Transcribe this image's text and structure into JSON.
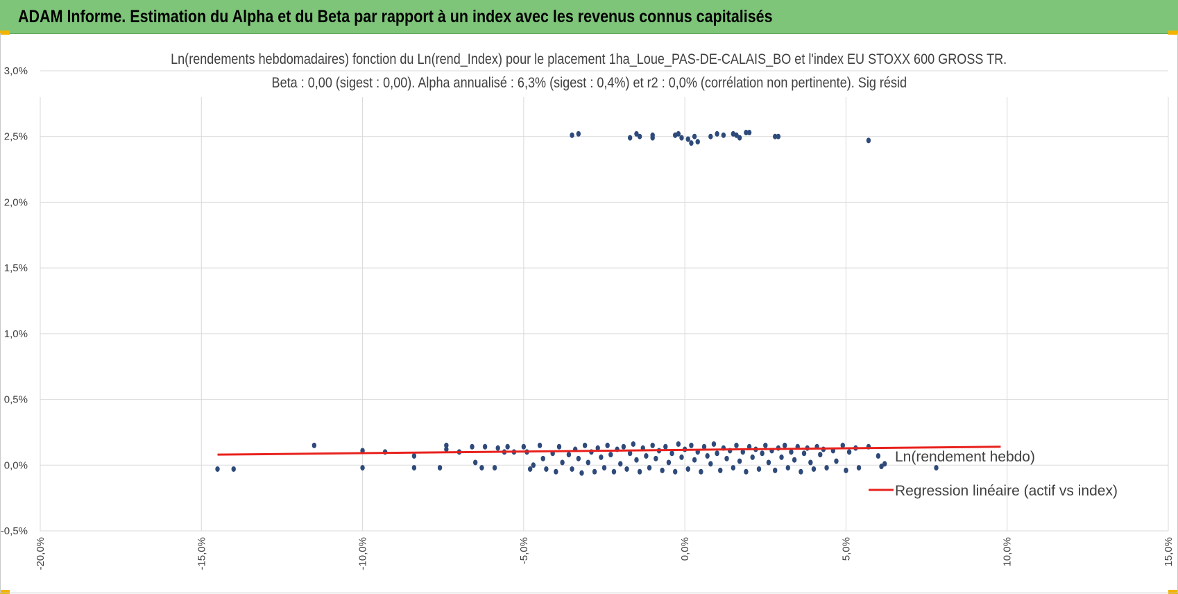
{
  "banner": {
    "title": "ADAM Informe. Estimation du Alpha et du Beta par rapport à un index avec les revenus connus capitalisés",
    "background_color": "#7ec57a",
    "corner_color": "#f2b400"
  },
  "chart_data": {
    "type": "scatter",
    "title": "Ln(rendements hebdomadaires) fonction du Ln(rend_Index) pour le placement 1ha_Loue_PAS-DE-CALAIS_BO et l'index EU STOXX 600 GROSS TR.",
    "subtitle": "Beta : 0,00 (sigest : 0,00). Alpha annualisé : 6,3% (sigest : 0,4%) et r2 : 0,0% (corrélation non pertinente). Sig résid",
    "xlabel": "",
    "ylabel": "",
    "xlim": [
      -20,
      15
    ],
    "ylim": [
      -0.5,
      3.0
    ],
    "x_ticks": [
      -20,
      -15,
      -10,
      -5,
      0,
      5,
      10,
      15
    ],
    "x_tick_labels": [
      "-20,0%",
      "-15,0%",
      "-10,0%",
      "-5,0%",
      "0,0%",
      "5,0%",
      "10,0%",
      "15,0%"
    ],
    "y_ticks": [
      -0.5,
      0,
      0.5,
      1.0,
      1.5,
      2.0,
      2.5,
      3.0
    ],
    "y_tick_labels": [
      "-0,5%",
      "0,0%",
      "0,5%",
      "1,0%",
      "1,5%",
      "2,0%",
      "2,5%",
      "3,0%"
    ],
    "grid": true,
    "legend_position": "right",
    "series": [
      {
        "name": "Ln(rendement hebdo)",
        "kind": "scatter",
        "color": "#2e4a7a",
        "points": [
          [
            -14.5,
            -0.03
          ],
          [
            -14.0,
            -0.03
          ],
          [
            -11.5,
            0.15
          ],
          [
            -10.0,
            0.11
          ],
          [
            -10.0,
            -0.02
          ],
          [
            -9.3,
            0.1
          ],
          [
            -8.4,
            0.07
          ],
          [
            -8.4,
            -0.02
          ],
          [
            -7.6,
            -0.02
          ],
          [
            -7.4,
            0.15
          ],
          [
            -7.4,
            0.12
          ],
          [
            -7.0,
            0.1
          ],
          [
            -6.6,
            0.14
          ],
          [
            -6.5,
            0.02
          ],
          [
            -6.3,
            -0.02
          ],
          [
            -6.2,
            0.14
          ],
          [
            -5.9,
            -0.02
          ],
          [
            -5.8,
            0.13
          ],
          [
            -5.6,
            0.1
          ],
          [
            -5.5,
            0.14
          ],
          [
            -5.3,
            0.1
          ],
          [
            -5.0,
            0.14
          ],
          [
            -4.9,
            0.1
          ],
          [
            -4.8,
            -0.03
          ],
          [
            -4.7,
            0.0
          ],
          [
            -4.5,
            0.15
          ],
          [
            -4.4,
            0.05
          ],
          [
            -4.3,
            -0.03
          ],
          [
            -4.1,
            0.09
          ],
          [
            -4.0,
            -0.05
          ],
          [
            -3.9,
            0.14
          ],
          [
            -3.8,
            0.02
          ],
          [
            -3.6,
            0.08
          ],
          [
            -3.5,
            -0.03
          ],
          [
            -3.4,
            0.12
          ],
          [
            -3.3,
            0.05
          ],
          [
            -3.2,
            -0.06
          ],
          [
            -3.1,
            0.15
          ],
          [
            -3.0,
            0.02
          ],
          [
            -2.9,
            0.1
          ],
          [
            -2.8,
            -0.05
          ],
          [
            -2.7,
            0.13
          ],
          [
            -2.6,
            0.06
          ],
          [
            -2.5,
            -0.02
          ],
          [
            -2.4,
            0.15
          ],
          [
            -2.3,
            0.08
          ],
          [
            -2.2,
            -0.05
          ],
          [
            -2.1,
            0.12
          ],
          [
            -2.0,
            0.01
          ],
          [
            -1.9,
            0.14
          ],
          [
            -1.8,
            -0.03
          ],
          [
            -1.7,
            0.09
          ],
          [
            -1.6,
            0.16
          ],
          [
            -1.5,
            0.04
          ],
          [
            -1.4,
            -0.05
          ],
          [
            -1.3,
            0.13
          ],
          [
            -1.2,
            0.07
          ],
          [
            -1.1,
            -0.02
          ],
          [
            -1.0,
            0.15
          ],
          [
            -0.9,
            0.05
          ],
          [
            -0.8,
            0.11
          ],
          [
            -0.7,
            -0.04
          ],
          [
            -0.6,
            0.14
          ],
          [
            -0.5,
            0.02
          ],
          [
            -0.4,
            0.09
          ],
          [
            -0.3,
            -0.05
          ],
          [
            -0.2,
            0.16
          ],
          [
            -0.1,
            0.06
          ],
          [
            0.0,
            0.12
          ],
          [
            0.1,
            -0.03
          ],
          [
            0.2,
            0.15
          ],
          [
            0.3,
            0.04
          ],
          [
            0.4,
            0.1
          ],
          [
            0.5,
            -0.05
          ],
          [
            0.6,
            0.14
          ],
          [
            0.7,
            0.07
          ],
          [
            0.8,
            0.01
          ],
          [
            0.9,
            0.16
          ],
          [
            1.0,
            0.09
          ],
          [
            1.1,
            -0.04
          ],
          [
            1.2,
            0.13
          ],
          [
            1.3,
            0.05
          ],
          [
            1.4,
            0.11
          ],
          [
            1.5,
            -0.02
          ],
          [
            1.6,
            0.15
          ],
          [
            1.7,
            0.03
          ],
          [
            1.8,
            0.1
          ],
          [
            1.9,
            -0.05
          ],
          [
            2.0,
            0.14
          ],
          [
            2.1,
            0.06
          ],
          [
            2.2,
            0.12
          ],
          [
            2.3,
            -0.03
          ],
          [
            2.4,
            0.09
          ],
          [
            2.5,
            0.15
          ],
          [
            2.6,
            0.02
          ],
          [
            2.7,
            0.11
          ],
          [
            2.8,
            -0.04
          ],
          [
            2.9,
            0.13
          ],
          [
            3.0,
            0.06
          ],
          [
            3.1,
            0.15
          ],
          [
            3.2,
            -0.02
          ],
          [
            3.3,
            0.1
          ],
          [
            3.4,
            0.04
          ],
          [
            3.5,
            0.14
          ],
          [
            3.6,
            -0.05
          ],
          [
            3.7,
            0.09
          ],
          [
            3.8,
            0.13
          ],
          [
            3.9,
            0.02
          ],
          [
            4.0,
            -0.03
          ],
          [
            4.1,
            0.14
          ],
          [
            4.2,
            0.08
          ],
          [
            4.3,
            0.12
          ],
          [
            4.4,
            -0.02
          ],
          [
            4.6,
            0.11
          ],
          [
            4.7,
            0.03
          ],
          [
            4.9,
            0.15
          ],
          [
            5.0,
            -0.04
          ],
          [
            5.1,
            0.1
          ],
          [
            5.3,
            0.13
          ],
          [
            5.4,
            -0.02
          ],
          [
            5.7,
            0.14
          ],
          [
            6.0,
            0.07
          ],
          [
            6.1,
            -0.01
          ],
          [
            6.2,
            0.01
          ],
          [
            7.8,
            -0.02
          ],
          [
            -3.5,
            2.51
          ],
          [
            -3.3,
            2.52
          ],
          [
            -1.7,
            2.49
          ],
          [
            -1.5,
            2.52
          ],
          [
            -1.4,
            2.5
          ],
          [
            -1.0,
            2.49
          ],
          [
            -1.0,
            2.51
          ],
          [
            -0.3,
            2.51
          ],
          [
            -0.2,
            2.52
          ],
          [
            -0.1,
            2.49
          ],
          [
            0.1,
            2.48
          ],
          [
            0.2,
            2.45
          ],
          [
            0.3,
            2.5
          ],
          [
            0.4,
            2.46
          ],
          [
            0.8,
            2.5
          ],
          [
            1.0,
            2.52
          ],
          [
            1.2,
            2.51
          ],
          [
            1.5,
            2.52
          ],
          [
            1.6,
            2.51
          ],
          [
            1.7,
            2.49
          ],
          [
            1.9,
            2.53
          ],
          [
            2.0,
            2.53
          ],
          [
            2.8,
            2.5
          ],
          [
            2.9,
            2.5
          ],
          [
            5.7,
            2.47
          ]
        ]
      },
      {
        "name": "Regression linéaire (actif vs index)",
        "kind": "line",
        "color": "#e8211d",
        "points": [
          [
            -14.5,
            0.08
          ],
          [
            9.8,
            0.14
          ]
        ]
      }
    ]
  }
}
